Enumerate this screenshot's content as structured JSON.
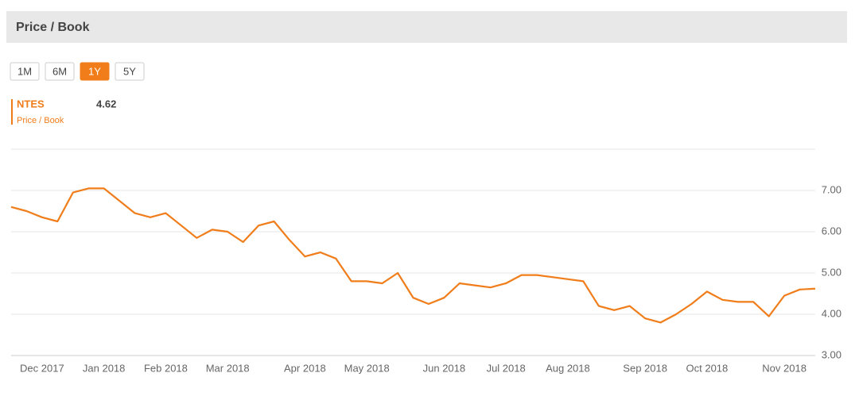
{
  "header": {
    "title": "Price / Book"
  },
  "ranges": [
    "1M",
    "6M",
    "1Y",
    "5Y"
  ],
  "active_range": "1Y",
  "chart_data": {
    "type": "line",
    "series_label": "Price / Book",
    "categories": [
      null,
      null,
      "Dec 2017",
      null,
      null,
      null,
      "Jan 2018",
      null,
      null,
      null,
      "Feb 2018",
      null,
      null,
      null,
      "Mar 2018",
      null,
      null,
      null,
      null,
      "Apr 2018",
      null,
      null,
      null,
      "May 2018",
      null,
      null,
      null,
      null,
      "Jun 2018",
      null,
      null,
      null,
      "Jul 2018",
      null,
      null,
      null,
      "Aug 2018",
      null,
      null,
      null,
      null,
      "Sep 2018",
      null,
      null,
      null,
      "Oct 2018",
      null,
      null,
      null,
      null,
      "Nov 2018",
      null,
      null
    ],
    "series": [
      {
        "name": "NTES",
        "color": "#f07d1a",
        "values": [
          6.6,
          6.5,
          6.35,
          6.25,
          6.95,
          7.05,
          7.05,
          6.75,
          6.45,
          6.35,
          6.45,
          6.15,
          5.85,
          6.05,
          6.0,
          5.75,
          6.15,
          6.25,
          5.8,
          5.4,
          5.5,
          5.35,
          4.8,
          4.8,
          4.75,
          5.0,
          4.4,
          4.25,
          4.4,
          4.75,
          4.7,
          4.65,
          4.75,
          4.95,
          4.95,
          4.9,
          4.85,
          4.8,
          4.2,
          4.1,
          4.2,
          3.9,
          3.8,
          4.0,
          4.25,
          4.55,
          4.35,
          4.3,
          4.3,
          3.95,
          4.45,
          4.6,
          4.62
        ]
      }
    ],
    "ylim": [
      3,
      8
    ],
    "yticks": [
      {
        "value": 3,
        "label": "3.00"
      },
      {
        "value": 4,
        "label": "4.00"
      },
      {
        "value": 5,
        "label": "5.00"
      },
      {
        "value": 6,
        "label": "6.00"
      },
      {
        "value": 7,
        "label": "7.00"
      }
    ],
    "grid": true
  }
}
